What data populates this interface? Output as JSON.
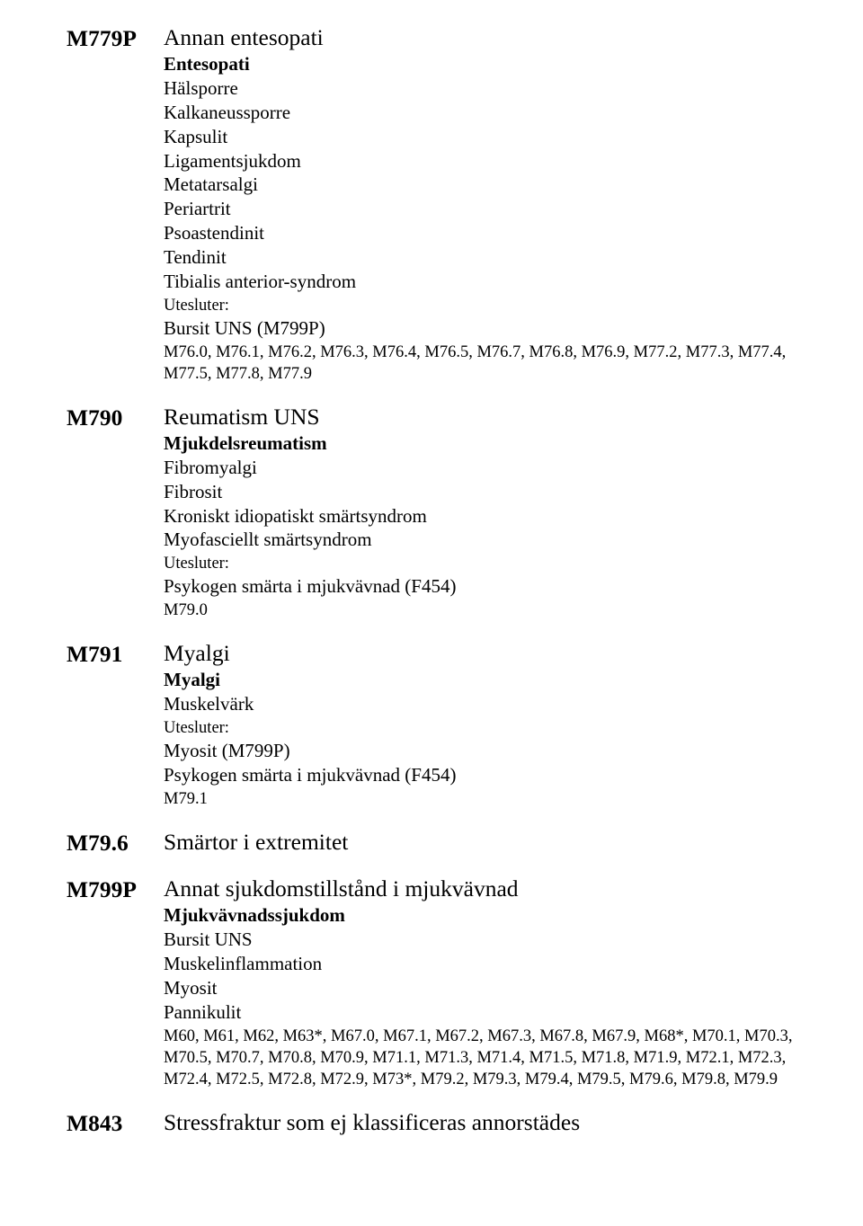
{
  "entries": [
    {
      "code": "M779P",
      "title": "Annan entesopati",
      "subtitle": "Entesopati",
      "terms": [
        "Hälsporre",
        "Kalkaneussporre",
        "Kapsulit",
        "Ligamentsjukdom",
        "Metatarsalgi",
        "Periartrit",
        "Psoastendinit",
        "Tendinit",
        "Tibialis anterior-syndrom"
      ],
      "excludes_label": "Utesluter:",
      "excludes": [
        "Bursit UNS (M799P)"
      ],
      "mapping": "M76.0, M76.1, M76.2, M76.3, M76.4, M76.5, M76.7, M76.8, M76.9, M77.2, M77.3, M77.4, M77.5, M77.8, M77.9"
    },
    {
      "code": "M790",
      "title": "Reumatism UNS",
      "subtitle": "Mjukdelsreumatism",
      "terms": [
        "Fibromyalgi",
        "Fibrosit",
        "Kroniskt idiopatiskt smärtsyndrom",
        "Myofasciellt smärtsyndrom"
      ],
      "excludes_label": "Utesluter:",
      "excludes": [
        "Psykogen smärta i mjukvävnad (F454)"
      ],
      "mapping": "M79.0"
    },
    {
      "code": "M791",
      "title": "Myalgi",
      "subtitle": "Myalgi",
      "terms": [
        "Muskelvärk"
      ],
      "excludes_label": "Utesluter:",
      "excludes": [
        "Myosit (M799P)",
        "Psykogen smärta i mjukvävnad (F454)"
      ],
      "mapping": "M79.1"
    },
    {
      "code": "M79.6",
      "title": "Smärtor i extremitet",
      "subtitle": "",
      "terms": [],
      "excludes_label": "",
      "excludes": [],
      "mapping": ""
    },
    {
      "code": "M799P",
      "title": "Annat sjukdomstillstånd i mjukvävnad",
      "subtitle": "Mjukvävnadssjukdom",
      "terms": [
        "Bursit UNS",
        "Muskelinflammation",
        "Myosit",
        "Pannikulit"
      ],
      "excludes_label": "",
      "excludes": [],
      "mapping": "M60, M61, M62, M63*, M67.0, M67.1, M67.2, M67.3, M67.8, M67.9, M68*, M70.1, M70.3, M70.5, M70.7, M70.8, M70.9, M71.1, M71.3, M71.4, M71.5, M71.8, M71.9, M72.1, M72.3, M72.4, M72.5, M72.8, M72.9, M73*, M79.2, M79.3, M79.4, M79.5, M79.6, M79.8, M79.9"
    },
    {
      "code": "M843",
      "title": "Stressfraktur som ej klassificeras annorstädes",
      "subtitle": "",
      "terms": [],
      "excludes_label": "",
      "excludes": [],
      "mapping": ""
    }
  ]
}
